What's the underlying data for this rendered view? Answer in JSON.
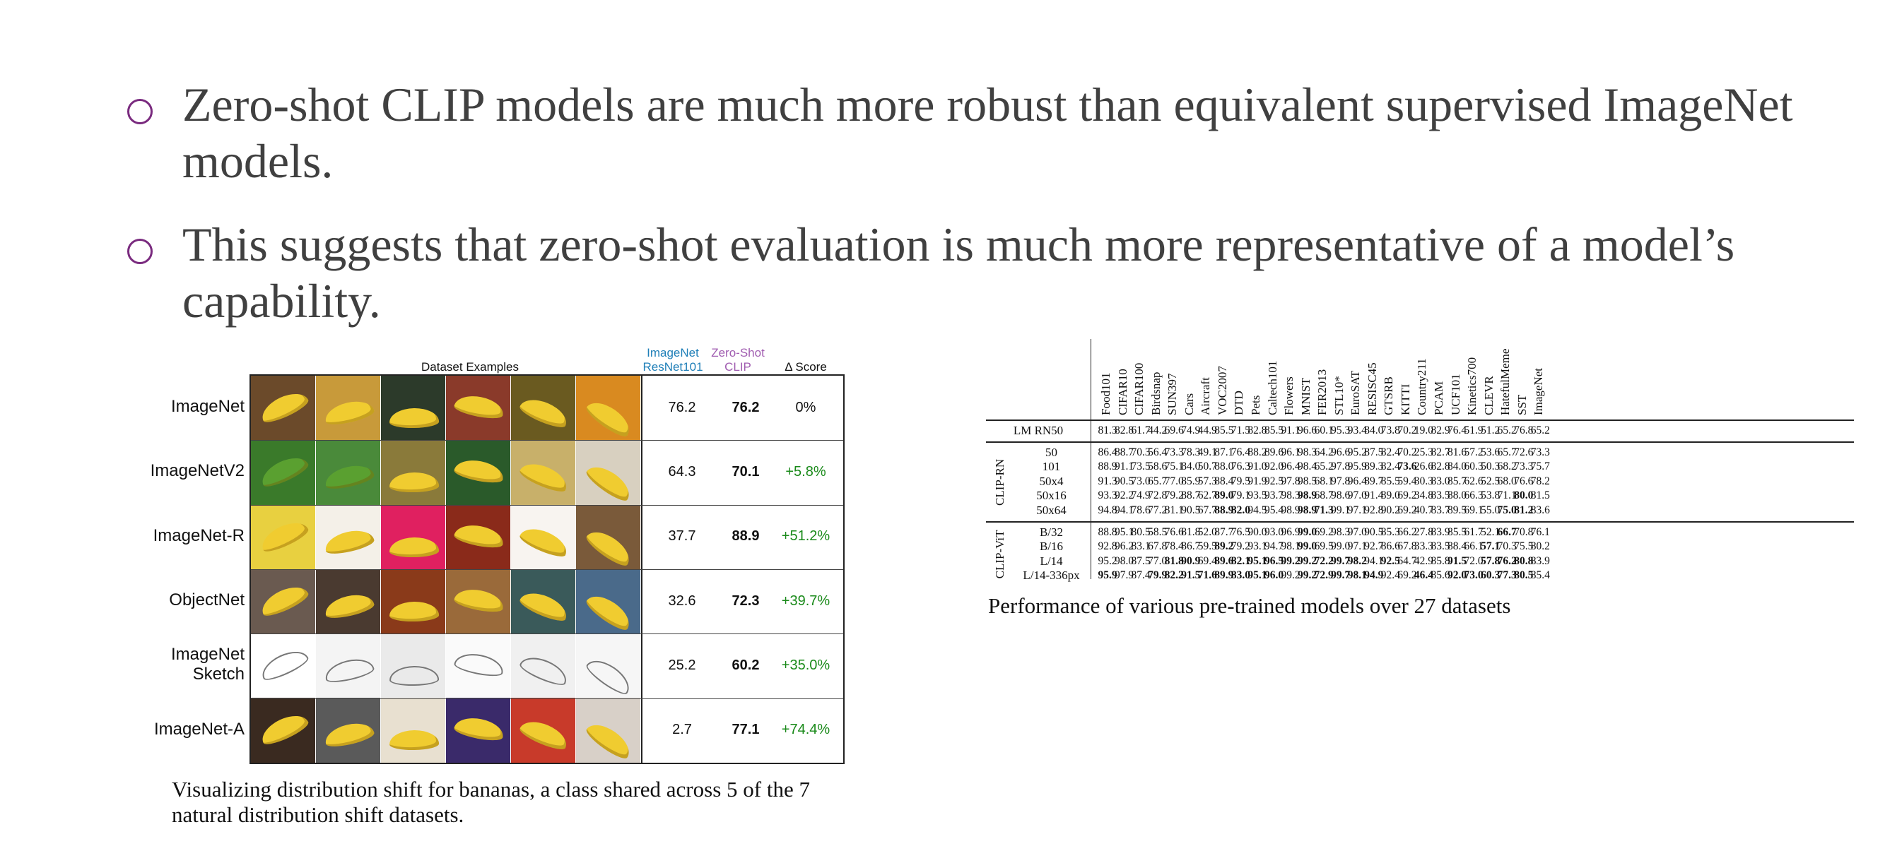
{
  "bullets": [
    "Zero-shot CLIP models are much more robust than equivalent supervised ImageNet models.",
    "This suggests that zero-shot evaluation is much more representative of a model’s capability."
  ],
  "left_figure": {
    "headers": {
      "examples": "Dataset Examples",
      "resnet": "ImageNet ResNet101",
      "clip": "Zero-Shot CLIP",
      "delta": "Δ Score"
    },
    "header_colors": {
      "resnet": "#1f7fb8",
      "clip": "#a05cb0"
    },
    "rows": [
      {
        "label": "ImageNet",
        "resnet": "76.2",
        "clip": "76.2",
        "delta": "0%"
      },
      {
        "label": "ImageNetV2",
        "resnet": "64.3",
        "clip": "70.1",
        "delta": "+5.8%"
      },
      {
        "label": "ImageNet-R",
        "resnet": "37.7",
        "clip": "88.9",
        "delta": "+51.2%"
      },
      {
        "label": "ObjectNet",
        "resnet": "32.6",
        "clip": "72.3",
        "delta": "+39.7%"
      },
      {
        "label": "ImageNet Sketch",
        "resnet": "25.2",
        "clip": "60.2",
        "delta": "+35.0%"
      },
      {
        "label": "ImageNet-A",
        "resnet": "2.7",
        "clip": "77.1",
        "delta": "+74.4%"
      }
    ],
    "caption": "Visualizing distribution shift for bananas, a class shared across 5 of the 7 natural distribution shift datasets."
  },
  "right_figure": {
    "columns": [
      "Food101",
      "CIFAR10",
      "CIFAR100",
      "Birdsnap",
      "SUN397",
      "Cars",
      "Aircraft",
      "VOC2007",
      "DTD",
      "Pets",
      "Caltech101",
      "Flowers",
      "MNIST",
      "FER2013",
      "STL10*",
      "EuroSAT",
      "RESISC45",
      "GTSRB",
      "KITTI",
      "Country211",
      "PCAM",
      "UCF101",
      "Kinetics700",
      "CLEVR",
      "HatefulMeme",
      "SST",
      "ImageNet"
    ],
    "groups": [
      {
        "name": "",
        "rows": [
          {
            "model": "LM RN50",
            "values": [
              "81.3",
              "82.8",
              "61.7",
              "44.2",
              "69.6",
              "74.9",
              "44.9",
              "85.5",
              "71.5",
              "82.8",
              "85.5",
              "91.1",
              "96.6",
              "60.1",
              "95.3",
              "93.4",
              "84.0",
              "73.8",
              "70.2",
              "19.0",
              "82.9",
              "76.4",
              "51.9",
              "51.2",
              "65.2",
              "76.8",
              "65.2"
            ],
            "bold": []
          }
        ]
      },
      {
        "name": "CLIP-RN",
        "rows": [
          {
            "model": "50",
            "values": [
              "86.4",
              "88.7",
              "70.3",
              "56.4",
              "73.3",
              "78.3",
              "49.1",
              "87.1",
              "76.4",
              "88.2",
              "89.6",
              "96.1",
              "98.3",
              "64.2",
              "96.6",
              "95.2",
              "87.5",
              "82.4",
              "70.2",
              "25.3",
              "82.7",
              "81.6",
              "57.2",
              "53.6",
              "65.7",
              "72.6",
              "73.3"
            ],
            "bold": []
          },
          {
            "model": "101",
            "values": [
              "88.9",
              "91.1",
              "73.5",
              "58.6",
              "75.1",
              "84.0",
              "50.7",
              "88.0",
              "76.3",
              "91.0",
              "92.0",
              "96.4",
              "98.4",
              "65.2",
              "97.8",
              "95.9",
              "89.3",
              "82.4",
              "73.6",
              "26.6",
              "82.8",
              "84.0",
              "60.3",
              "50.3",
              "68.2",
              "73.3",
              "75.7"
            ],
            "bold": [
              18
            ]
          },
          {
            "model": "50x4",
            "values": [
              "91.3",
              "90.5",
              "73.0",
              "65.7",
              "77.0",
              "85.9",
              "57.3",
              "88.4",
              "79.5",
              "91.9",
              "92.5",
              "97.8",
              "98.5",
              "68.1",
              "97.8",
              "96.4",
              "89.7",
              "85.5",
              "59.4",
              "30.3",
              "83.0",
              "85.7",
              "62.6",
              "52.5",
              "68.0",
              "76.6",
              "78.2"
            ],
            "bold": []
          },
          {
            "model": "50x16",
            "values": [
              "93.3",
              "92.2",
              "74.9",
              "72.8",
              "79.2",
              "88.7",
              "62.7",
              "89.0",
              "79.1",
              "93.5",
              "93.7",
              "98.3",
              "98.9",
              "68.7",
              "98.6",
              "97.0",
              "91.4",
              "89.0",
              "69.2",
              "34.8",
              "83.5",
              "88.0",
              "66.3",
              "53.8",
              "71.1",
              "80.0",
              "81.5"
            ],
            "bold": [
              7,
              12,
              25
            ]
          },
          {
            "model": "50x64",
            "values": [
              "94.8",
              "94.1",
              "78.6",
              "77.2",
              "81.1",
              "90.5",
              "67.7",
              "88.9",
              "82.0",
              "94.5",
              "95.4",
              "98.9",
              "98.9",
              "71.3",
              "99.1",
              "97.1",
              "92.8",
              "90.2",
              "69.2",
              "40.7",
              "83.7",
              "89.5",
              "69.1",
              "55.0",
              "75.0",
              "81.2",
              "83.6"
            ],
            "bold": [
              7,
              8,
              12,
              13,
              24,
              25
            ]
          }
        ]
      },
      {
        "name": "CLIP-ViT",
        "rows": [
          {
            "model": "B/32",
            "values": [
              "88.8",
              "95.1",
              "80.5",
              "58.5",
              "76.6",
              "81.8",
              "52.0",
              "87.7",
              "76.5",
              "90.0",
              "93.0",
              "96.9",
              "99.0",
              "69.2",
              "98.3",
              "97.0",
              "90.5",
              "85.3",
              "66.2",
              "27.8",
              "83.9",
              "85.5",
              "61.7",
              "52.1",
              "66.7",
              "70.8",
              "76.1"
            ],
            "bold": [
              12,
              24
            ]
          },
          {
            "model": "B/16",
            "values": [
              "92.8",
              "96.2",
              "83.1",
              "67.8",
              "78.4",
              "86.7",
              "59.5",
              "89.2",
              "79.2",
              "93.1",
              "94.7",
              "98.1",
              "99.0",
              "69.5",
              "99.0",
              "97.1",
              "92.7",
              "86.6",
              "67.8",
              "33.3",
              "83.5",
              "88.4",
              "66.1",
              "57.1",
              "70.3",
              "75.5",
              "80.2"
            ],
            "bold": [
              7,
              12,
              23
            ]
          },
          {
            "model": "L/14",
            "values": [
              "95.2",
              "98.0",
              "87.5",
              "77.0",
              "81.8",
              "90.9",
              "69.4",
              "89.6",
              "82.1",
              "95.1",
              "96.5",
              "99.2",
              "99.2",
              "72.2",
              "99.7",
              "98.2",
              "94.1",
              "92.5",
              "64.7",
              "42.9",
              "85.8",
              "91.5",
              "72.0",
              "57.8",
              "76.2",
              "80.8",
              "83.9"
            ],
            "bold": [
              4,
              5,
              7,
              8,
              9,
              10,
              11,
              12,
              13,
              14,
              15,
              17,
              21,
              23,
              24,
              25
            ]
          },
          {
            "model": "L/14-336px",
            "values": [
              "95.9",
              "97.9",
              "87.4",
              "79.9",
              "82.2",
              "91.5",
              "71.6",
              "89.9",
              "83.0",
              "95.1",
              "96.0",
              "99.2",
              "99.2",
              "72.9",
              "99.7",
              "98.1",
              "94.9",
              "92.4",
              "69.2",
              "46.4",
              "85.6",
              "92.0",
              "73.0",
              "60.3",
              "77.3",
              "80.5",
              "85.4"
            ],
            "bold": [
              0,
              3,
              4,
              5,
              6,
              7,
              8,
              9,
              10,
              12,
              13,
              14,
              15,
              16,
              19,
              21,
              22,
              23,
              24,
              25
            ]
          }
        ]
      }
    ],
    "caption": "Performance of various pre-trained models over 27 datasets"
  }
}
